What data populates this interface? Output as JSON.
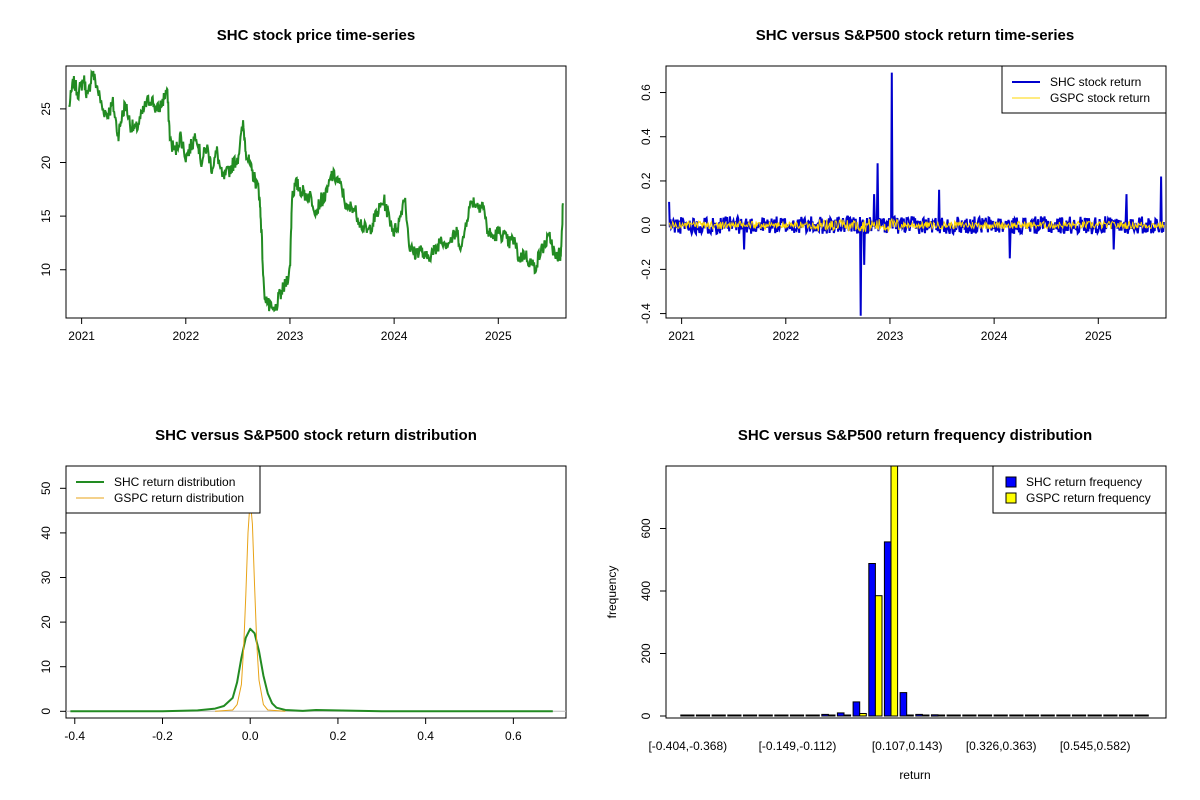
{
  "chart_data": [
    {
      "type": "line",
      "title": "SHC stock price time-series",
      "xlabel": "",
      "ylabel": "",
      "xlim": [
        2020.85,
        2025.65
      ],
      "ylim": [
        5.5,
        29
      ],
      "xticks": [
        2021,
        2022,
        2023,
        2024,
        2025
      ],
      "xtick_labels": [
        "2021",
        "2022",
        "2023",
        "2024",
        "2025"
      ],
      "yticks": [
        10,
        15,
        20,
        25
      ],
      "ytick_labels": [
        "10",
        "15",
        "20",
        "25"
      ],
      "colors": {
        "line": "#228b22"
      },
      "series": [
        {
          "x": [
            2020.88,
            2020.92,
            2020.97,
            2021.02,
            2021.06,
            2021.1,
            2021.15,
            2021.2,
            2021.25,
            2021.3,
            2021.35,
            2021.38,
            2021.42,
            2021.47,
            2021.52,
            2021.57,
            2021.62,
            2021.67,
            2021.72,
            2021.77,
            2021.82,
            2021.85,
            2021.9,
            2021.95,
            2022.0,
            2022.05,
            2022.1,
            2022.15,
            2022.2,
            2022.25,
            2022.3,
            2022.35,
            2022.4,
            2022.45,
            2022.5,
            2022.55,
            2022.58,
            2022.62,
            2022.66,
            2022.7,
            2022.72,
            2022.75,
            2022.8,
            2022.85,
            2022.9,
            2022.95,
            2023.0,
            2023.02,
            2023.06,
            2023.1,
            2023.15,
            2023.2,
            2023.25,
            2023.3,
            2023.35,
            2023.4,
            2023.45,
            2023.5,
            2023.55,
            2023.6,
            2023.65,
            2023.7,
            2023.75,
            2023.8,
            2023.85,
            2023.9,
            2023.95,
            2024.0,
            2024.05,
            2024.1,
            2024.15,
            2024.2,
            2024.25,
            2024.3,
            2024.35,
            2024.4,
            2024.45,
            2024.5,
            2024.55,
            2024.6,
            2024.65,
            2024.7,
            2024.75,
            2024.8,
            2024.85,
            2024.9,
            2024.95,
            2025.0,
            2025.05,
            2025.1,
            2025.15,
            2025.2,
            2025.25,
            2025.3,
            2025.35,
            2025.4,
            2025.45,
            2025.5,
            2025.55,
            2025.58,
            2025.6,
            2025.62
          ],
          "y": [
            25.2,
            27.5,
            26.5,
            27.8,
            26.0,
            28.5,
            27.0,
            25.0,
            24.5,
            25.5,
            22.5,
            24.0,
            25.5,
            23.5,
            23.0,
            24.2,
            25.5,
            26.0,
            24.8,
            25.5,
            26.8,
            22.0,
            21.0,
            22.5,
            20.5,
            21.5,
            22.8,
            20.0,
            21.5,
            19.5,
            21.0,
            18.5,
            19.0,
            19.8,
            20.5,
            23.5,
            21.0,
            19.5,
            18.5,
            17.5,
            15.0,
            8.0,
            6.5,
            6.0,
            7.5,
            8.5,
            10.0,
            17.0,
            18.0,
            17.5,
            17.0,
            16.8,
            15.5,
            16.5,
            17.0,
            18.8,
            18.5,
            17.5,
            15.5,
            16.0,
            15.0,
            14.0,
            13.5,
            14.5,
            15.5,
            16.5,
            15.0,
            13.5,
            14.5,
            17.0,
            12.0,
            11.5,
            12.0,
            11.0,
            11.5,
            11.8,
            13.0,
            12.5,
            12.8,
            13.5,
            12.0,
            15.0,
            16.5,
            16.0,
            16.2,
            13.5,
            13.0,
            13.5,
            13.2,
            12.5,
            12.8,
            11.0,
            11.5,
            10.8,
            10.2,
            11.5,
            12.5,
            13.0,
            11.0,
            11.5,
            11.2,
            16.2
          ]
        }
      ]
    },
    {
      "type": "line",
      "title": "SHC versus S&P500 stock return time-series",
      "xlabel": "",
      "ylabel": "",
      "xlim": [
        2020.85,
        2025.65
      ],
      "ylim": [
        -0.42,
        0.72
      ],
      "xticks": [
        2021,
        2022,
        2023,
        2024,
        2025
      ],
      "xtick_labels": [
        "2021",
        "2022",
        "2023",
        "2024",
        "2025"
      ],
      "yticks": [
        -0.4,
        -0.2,
        0.0,
        0.2,
        0.4,
        0.6
      ],
      "ytick_labels": [
        "-0.4",
        "-0.2",
        "0.0",
        "0.2",
        "0.4",
        "0.6"
      ],
      "legend_position": "top-right",
      "legend": [
        "SHC stock return",
        "GSPC stock return"
      ],
      "colors": {
        "shc": "#0000cd",
        "gspc": "#ffd700"
      },
      "series": [
        {
          "name": "SHC stock return",
          "spikes": [
            {
              "x": 2020.88,
              "y": 0.105
            },
            {
              "x": 2021.6,
              "y": -0.11
            },
            {
              "x": 2022.72,
              "y": -0.41
            },
            {
              "x": 2022.75,
              "y": -0.18
            },
            {
              "x": 2022.88,
              "y": 0.28
            },
            {
              "x": 2022.85,
              "y": 0.14
            },
            {
              "x": 2023.02,
              "y": 0.69
            },
            {
              "x": 2023.47,
              "y": 0.16
            },
            {
              "x": 2024.15,
              "y": -0.15
            },
            {
              "x": 2025.15,
              "y": -0.11
            },
            {
              "x": 2025.27,
              "y": 0.14
            },
            {
              "x": 2025.6,
              "y": 0.22
            }
          ]
        },
        {
          "name": "GSPC stock return"
        }
      ]
    },
    {
      "type": "line",
      "title": "SHC versus S&P500 stock return distribution",
      "xlabel": "",
      "ylabel": "",
      "xlim": [
        -0.42,
        0.72
      ],
      "ylim": [
        -1.5,
        55
      ],
      "xticks": [
        -0.4,
        -0.2,
        0.0,
        0.2,
        0.4,
        0.6
      ],
      "xtick_labels": [
        "-0.4",
        "-0.2",
        "0.0",
        "0.2",
        "0.4",
        "0.6"
      ],
      "yticks": [
        0,
        10,
        20,
        30,
        40,
        50
      ],
      "ytick_labels": [
        "0",
        "10",
        "20",
        "30",
        "40",
        "50"
      ],
      "legend_position": "top-left",
      "legend": [
        "SHC return distribution",
        "GSPC return distribution"
      ],
      "colors": {
        "shc": "#228b22",
        "gspc": "#e8a317"
      },
      "series": [
        {
          "name": "SHC return distribution",
          "x": [
            -0.41,
            -0.2,
            -0.12,
            -0.08,
            -0.06,
            -0.04,
            -0.03,
            -0.02,
            -0.01,
            0.0,
            0.01,
            0.02,
            0.03,
            0.04,
            0.05,
            0.06,
            0.08,
            0.12,
            0.15,
            0.3,
            0.69
          ],
          "y": [
            0,
            0,
            0.2,
            0.6,
            1.2,
            3.0,
            6.5,
            12.0,
            16.5,
            18.5,
            17.5,
            13.5,
            8.0,
            4.0,
            1.8,
            0.8,
            0.3,
            0.1,
            0.3,
            0,
            0
          ]
        },
        {
          "name": "GSPC return distribution",
          "x": [
            -0.08,
            -0.04,
            -0.03,
            -0.02,
            -0.015,
            -0.01,
            -0.005,
            0.0,
            0.005,
            0.01,
            0.015,
            0.02,
            0.03,
            0.04,
            0.08
          ],
          "y": [
            0,
            0.3,
            1.5,
            6.0,
            14.0,
            26.0,
            40.0,
            47.5,
            42.0,
            28.0,
            15.0,
            7.0,
            1.5,
            0.3,
            0
          ]
        }
      ]
    },
    {
      "type": "bar",
      "title": "SHC versus S&P500 return frequency distribution",
      "xlabel": "return",
      "ylabel": "frequency",
      "ylim": [
        0,
        800
      ],
      "yticks": [
        0,
        200,
        400,
        600
      ],
      "ytick_labels": [
        "0",
        "200",
        "400",
        "600"
      ],
      "legend_position": "top-right",
      "legend": [
        "SHC return frequency",
        "GSPC return frequency"
      ],
      "colors": {
        "shc": "#0000ff",
        "gspc": "#ffff00"
      },
      "xtick_labels": [
        "[-0.404,-0.368)",
        "[-0.149,-0.112)",
        "[0.107,0.143)",
        "[0.326,0.363)",
        "[0.545,0.582)"
      ],
      "xtick_bins": [
        0,
        7,
        14,
        20,
        26
      ],
      "n_bins": 30,
      "series": [
        {
          "name": "SHC return frequency",
          "values": [
            2,
            0,
            0,
            0,
            0,
            0,
            0,
            1,
            2,
            5,
            10,
            45,
            488,
            557,
            75,
            5,
            4,
            2,
            1,
            3,
            1,
            0,
            0,
            0,
            0,
            0,
            0,
            0,
            0,
            1
          ]
        },
        {
          "name": "GSPC return frequency",
          "values": [
            0,
            0,
            0,
            0,
            0,
            0,
            0,
            0,
            0,
            0,
            0,
            8,
            385,
            800,
            0,
            0,
            0,
            0,
            0,
            0,
            0,
            0,
            0,
            0,
            0,
            0,
            0,
            0,
            0,
            0
          ]
        }
      ]
    }
  ]
}
